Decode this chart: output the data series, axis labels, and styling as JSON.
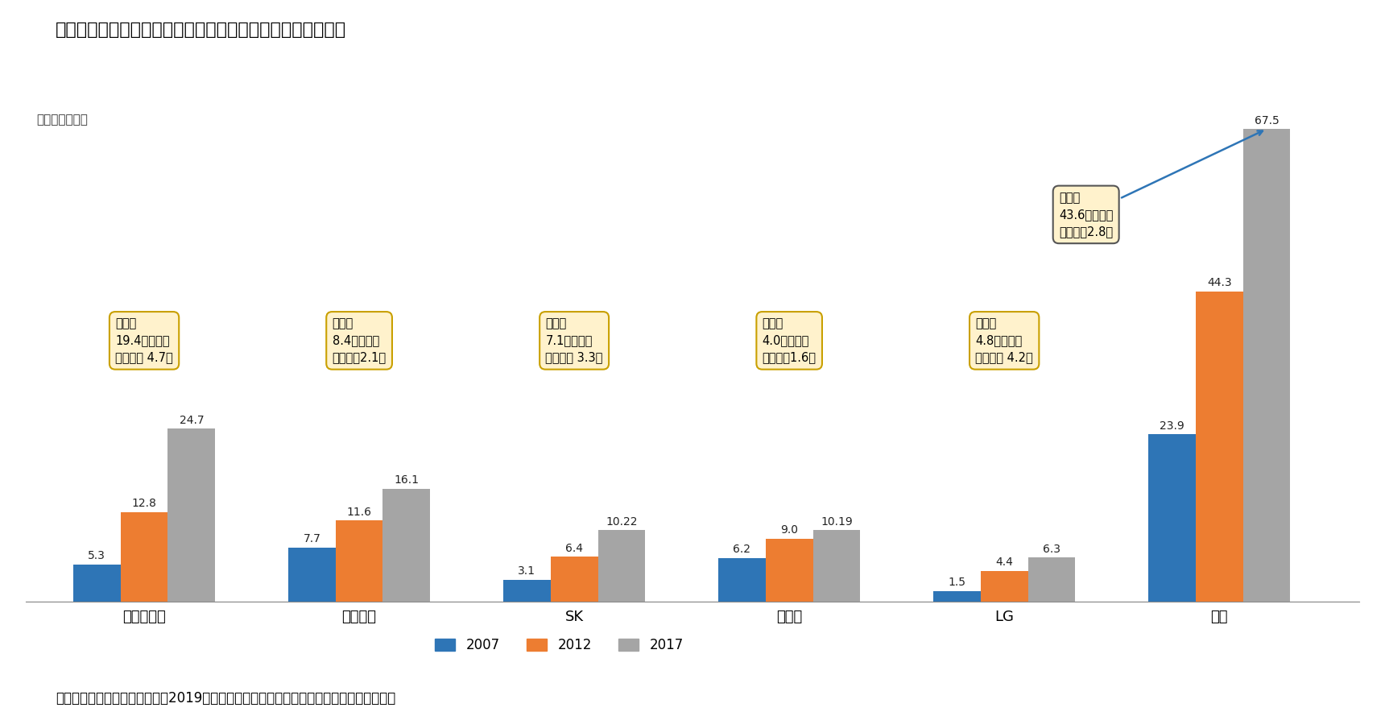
{
  "title": "図表１　５大グループが保有している土地の帳簿価格の推移",
  "unit_label": "単位：兆ウォン",
  "categories": [
    "現代自動車",
    "サムスン",
    "SK",
    "ロッテ",
    "LG",
    "合計"
  ],
  "years": [
    "2007",
    "2012",
    "2017"
  ],
  "values": {
    "2007": [
      5.3,
      7.7,
      3.1,
      6.2,
      1.5,
      23.9
    ],
    "2012": [
      12.8,
      11.6,
      6.4,
      9.0,
      4.4,
      44.3
    ],
    "2017": [
      24.7,
      16.1,
      10.22,
      10.19,
      6.3,
      67.5
    ]
  },
  "bar_colors": {
    "2007": "#2E75B6",
    "2012": "#ED7D31",
    "2017": "#A5A5A5"
  },
  "annotations": [
    {
      "text": "増加額\n19.4兆ウォン\n増加倍数 4.7倍",
      "cat_idx": 0
    },
    {
      "text": "増加額\n8.4兆ウォン\n増加倍数2.1倍",
      "cat_idx": 1
    },
    {
      "text": "増加額\n7.1兆ウォン\n増加倍数 3.3倍",
      "cat_idx": 2
    },
    {
      "text": "増加額\n4.0兆ウォン\n増加倍数1.6倍",
      "cat_idx": 3
    },
    {
      "text": "増加額\n4.8兆ウォン\n増加倍数 4.2倍",
      "cat_idx": 4
    }
  ],
  "top_annotation": {
    "text": "増加額\n43.6兆ウォン\n増加倍数2.8倍",
    "cat_idx": 5
  },
  "footer": "資料）経済正義実践市民連合（2019）「５大財閥グループの土地資産実態調査記者会見」",
  "background_color": "#FFFFFF",
  "annotation_box_color": "#FFF2CC",
  "annotation_box_edge": "#C9A000",
  "top_annotation_box_edge": "#555555",
  "ylim": [
    0,
    75
  ],
  "bar_width": 0.22
}
